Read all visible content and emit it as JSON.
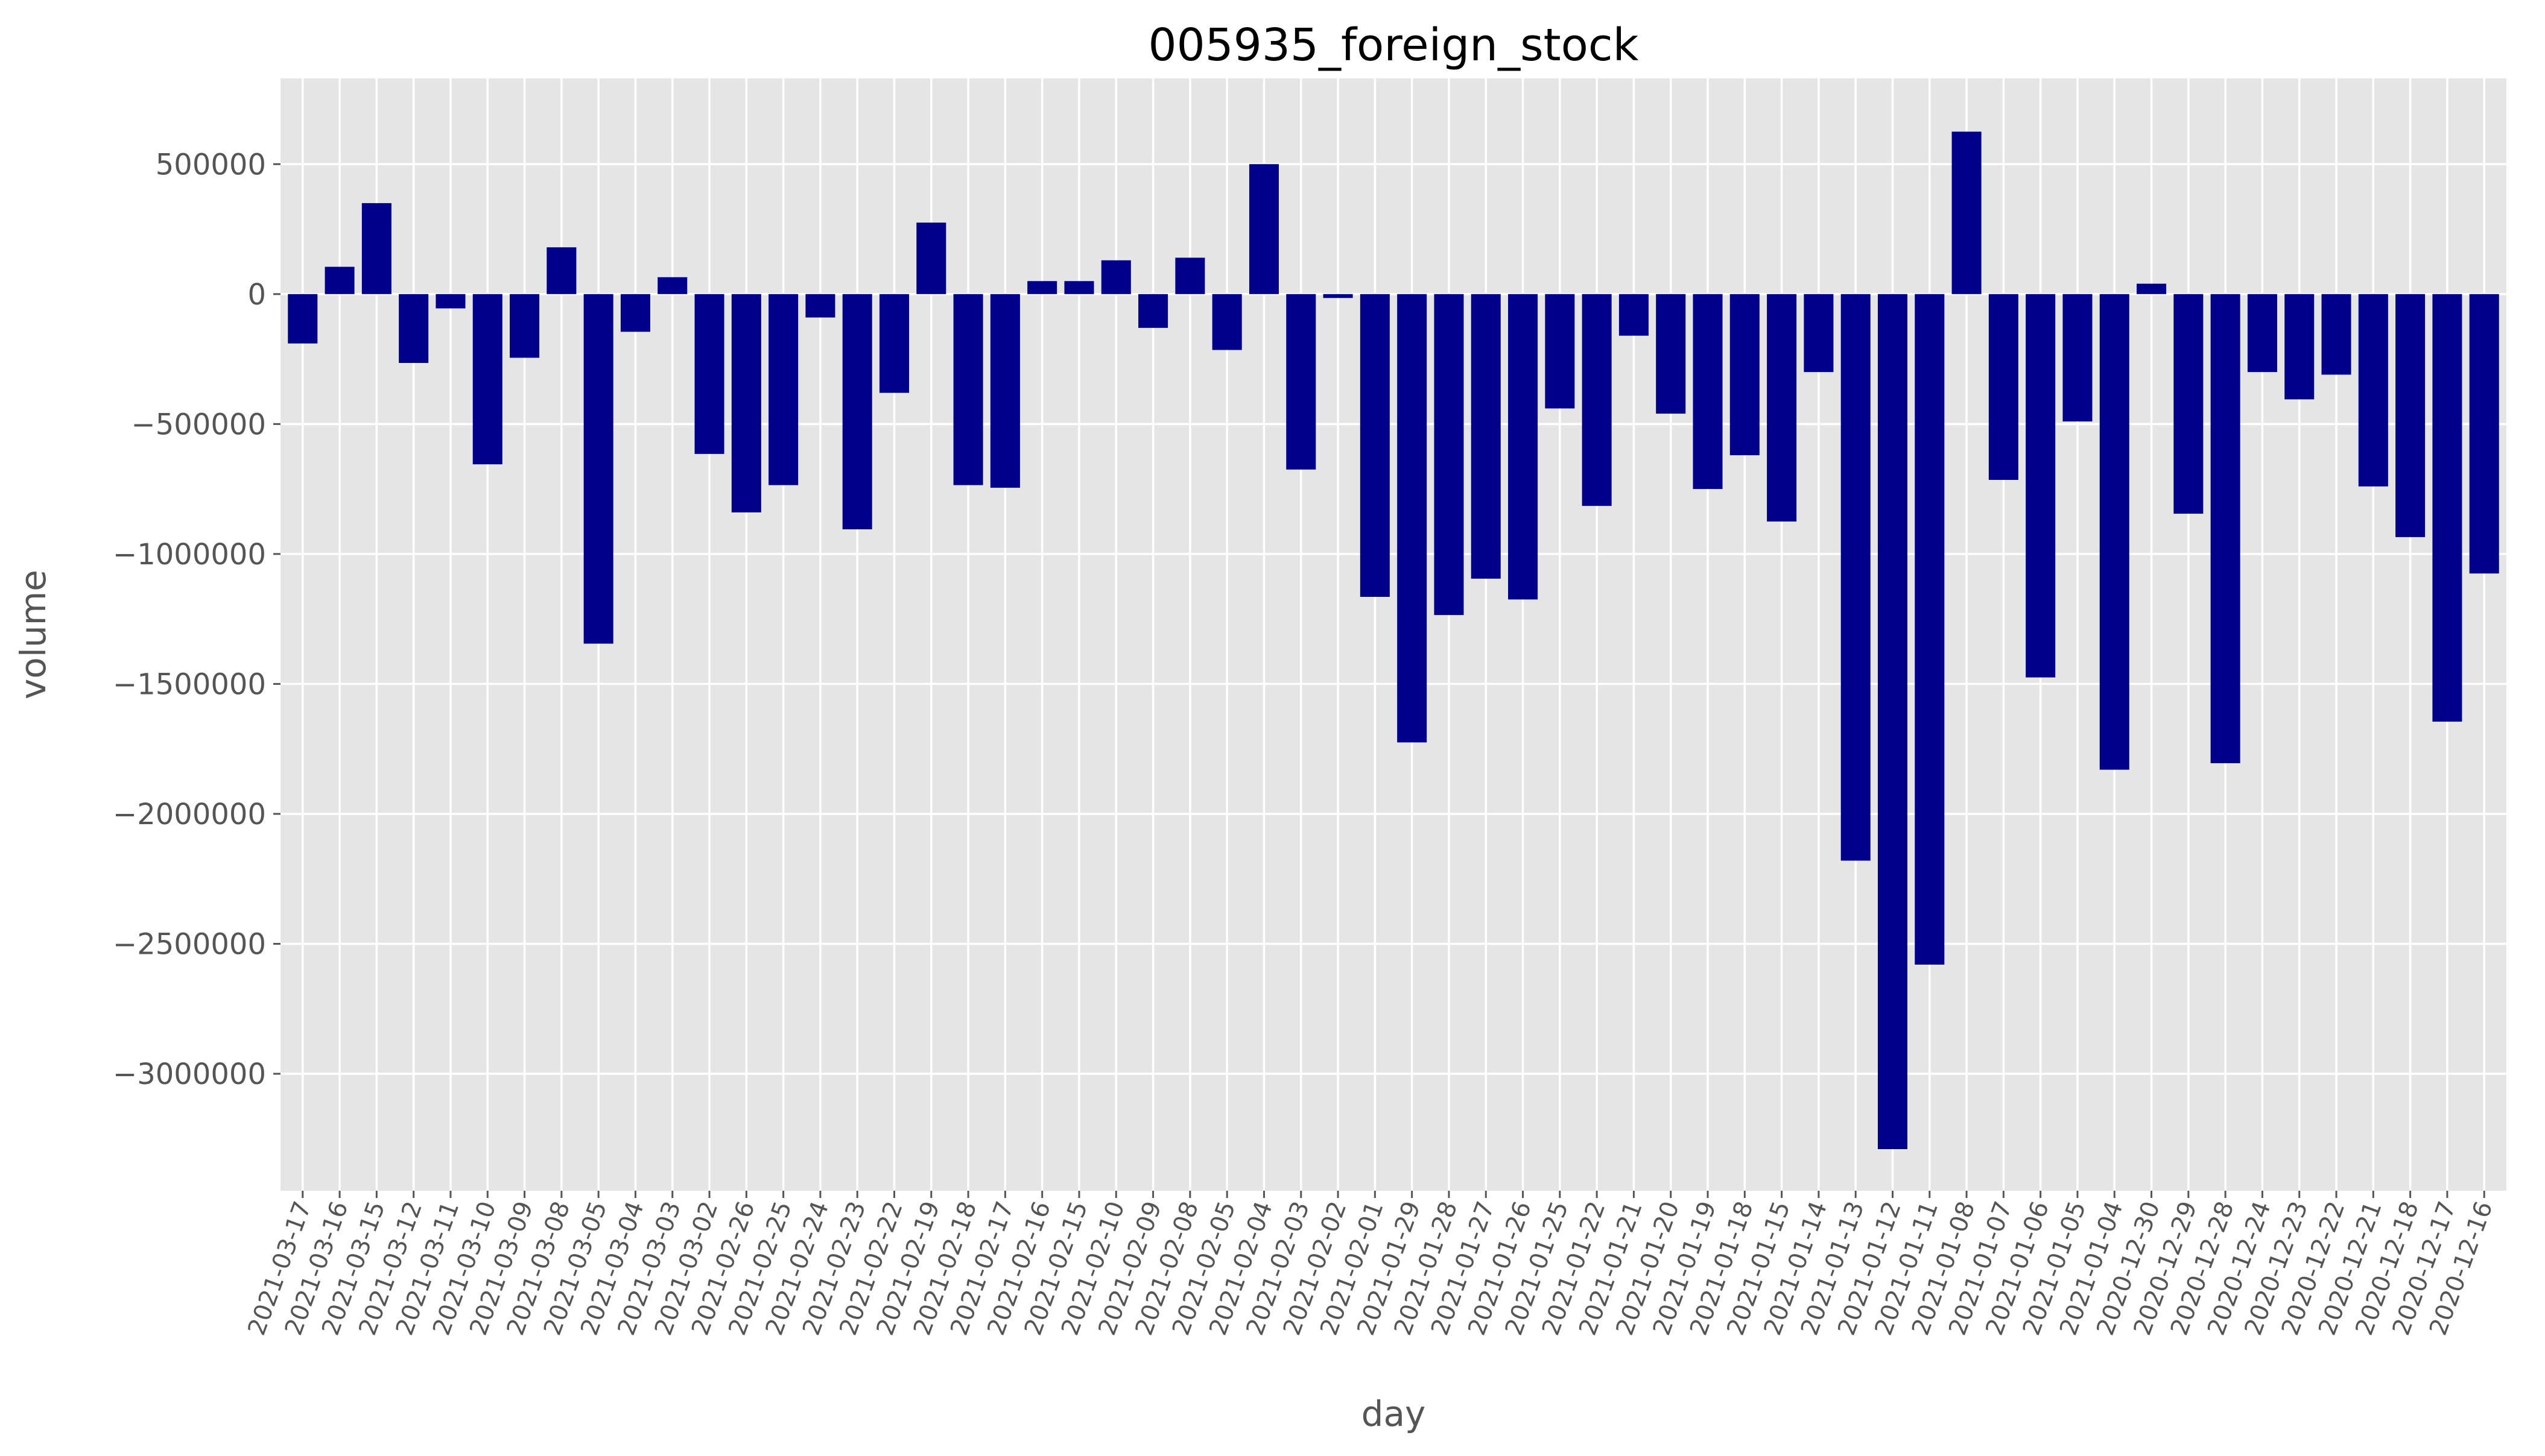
{
  "chart_data": {
    "type": "bar",
    "title": "005935_foreign_stock",
    "xlabel": "day",
    "ylabel": "volume",
    "ylim": [
      -3450000,
      830000
    ],
    "yticks": [
      500000,
      0,
      -500000,
      -1000000,
      -1500000,
      -2000000,
      -2500000,
      -3000000
    ],
    "ytick_labels": [
      "500000",
      "0",
      "−500000",
      "−1000000",
      "−1500000",
      "−2000000",
      "−2500000",
      "−3000000"
    ],
    "grid": true,
    "legend": "none",
    "colors": {
      "bar": "#00008b",
      "plot_background": "#e5e5e5",
      "grid": "#ffffff",
      "text": "#555555"
    },
    "categories": [
      "2021-03-17",
      "2021-03-16",
      "2021-03-15",
      "2021-03-12",
      "2021-03-11",
      "2021-03-10",
      "2021-03-09",
      "2021-03-08",
      "2021-03-05",
      "2021-03-04",
      "2021-03-03",
      "2021-03-02",
      "2021-02-26",
      "2021-02-25",
      "2021-02-24",
      "2021-02-23",
      "2021-02-22",
      "2021-02-19",
      "2021-02-18",
      "2021-02-17",
      "2021-02-16",
      "2021-02-15",
      "2021-02-10",
      "2021-02-09",
      "2021-02-08",
      "2021-02-05",
      "2021-02-04",
      "2021-02-03",
      "2021-02-02",
      "2021-02-01",
      "2021-01-29",
      "2021-01-28",
      "2021-01-27",
      "2021-01-26",
      "2021-01-25",
      "2021-01-22",
      "2021-01-21",
      "2021-01-20",
      "2021-01-19",
      "2021-01-18",
      "2021-01-15",
      "2021-01-14",
      "2021-01-13",
      "2021-01-12",
      "2021-01-11",
      "2021-01-08",
      "2021-01-07",
      "2021-01-06",
      "2021-01-05",
      "2021-01-04",
      "2020-12-30",
      "2020-12-29",
      "2020-12-28",
      "2020-12-24",
      "2020-12-23",
      "2020-12-22",
      "2020-12-21",
      "2020-12-18",
      "2020-12-17",
      "2020-12-16"
    ],
    "values": [
      -190000,
      105000,
      350000,
      -265000,
      -55000,
      -655000,
      -245000,
      180000,
      -1345000,
      -145000,
      65000,
      -615000,
      -840000,
      -735000,
      -90000,
      -905000,
      -380000,
      275000,
      -735000,
      -745000,
      50000,
      50000,
      130000,
      -130000,
      140000,
      -215000,
      500000,
      -675000,
      -15000,
      -1165000,
      -1725000,
      -1235000,
      -1095000,
      -1175000,
      -440000,
      -815000,
      -160000,
      -460000,
      -750000,
      -620000,
      -875000,
      -300000,
      -2180000,
      -3290000,
      -2580000,
      625000,
      -715000,
      -1475000,
      -490000,
      -1830000,
      40000,
      -845000,
      -1805000,
      -300000,
      -405000,
      -310000,
      -740000,
      -935000,
      -1645000,
      -1075000
    ]
  }
}
